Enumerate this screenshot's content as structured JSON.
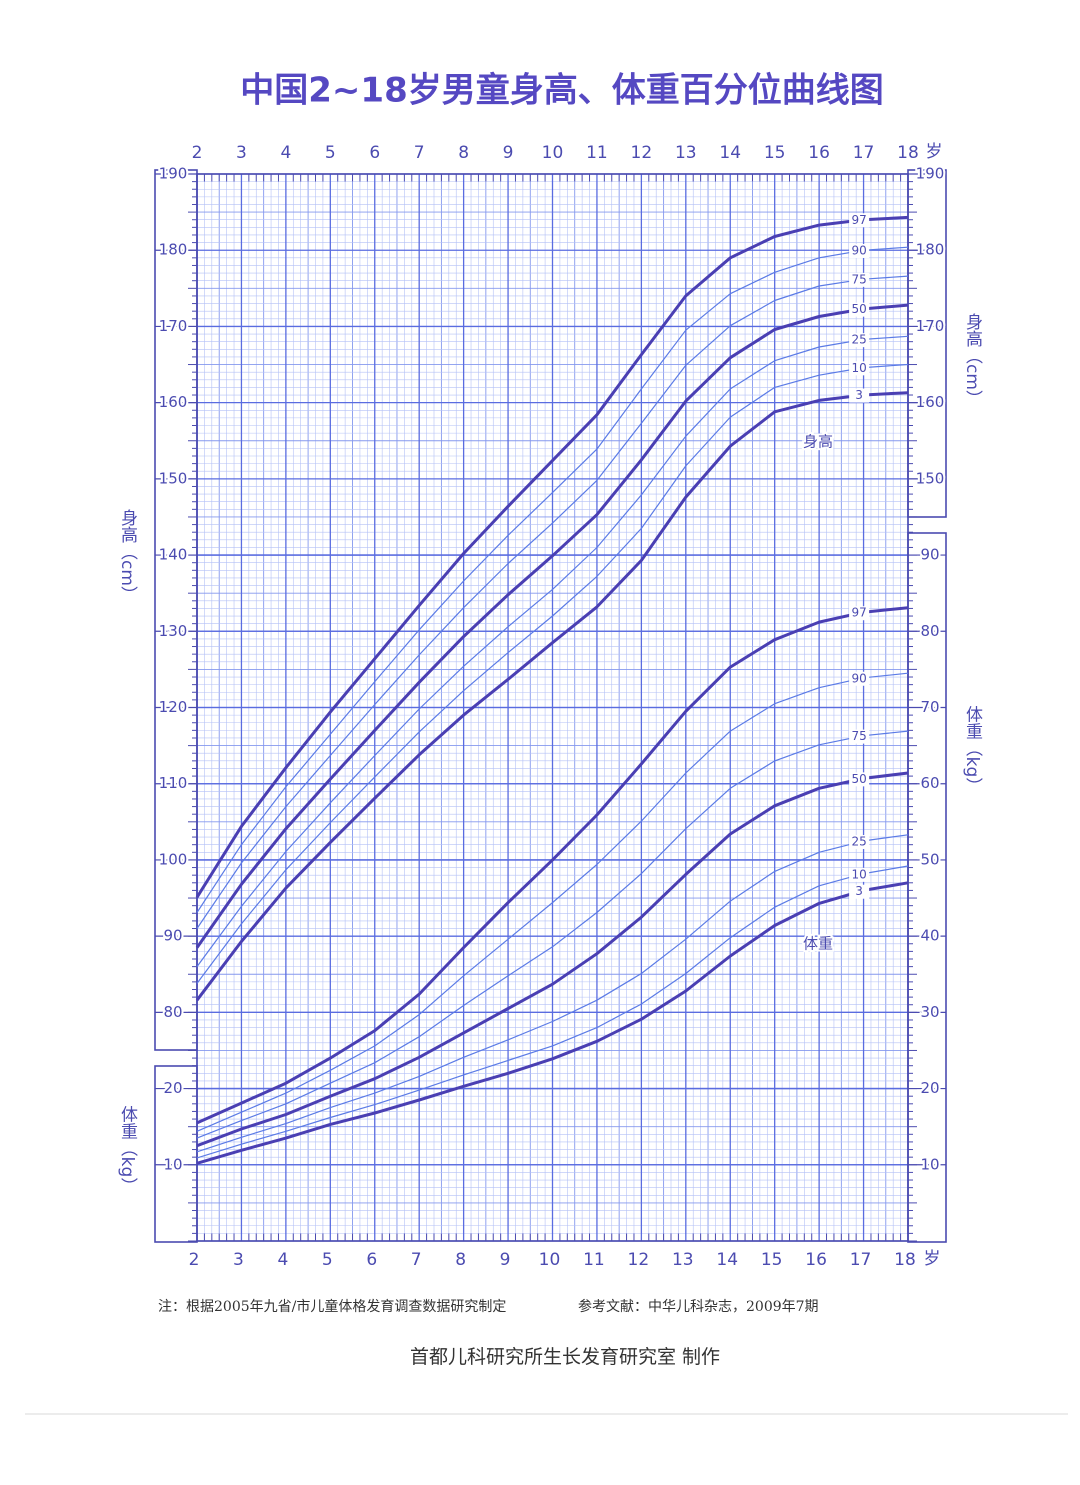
{
  "chart_data": {
    "type": "line",
    "title": "中国2~18岁男童身高、体重百分位曲线图",
    "x": [
      2,
      3,
      4,
      5,
      6,
      7,
      8,
      9,
      10,
      11,
      12,
      13,
      14,
      15,
      16,
      17,
      18
    ],
    "xlim": [
      2,
      18
    ],
    "xticks": [
      2,
      3,
      4,
      5,
      6,
      7,
      8,
      9,
      10,
      11,
      12,
      13,
      14,
      15,
      16,
      17,
      18
    ],
    "xunit": "岁",
    "ylabel": "身高（cm）",
    "y2label": "体重（kg）",
    "ylim": [
      50,
      190
    ],
    "yticks": [
      80,
      90,
      100,
      110,
      120,
      130,
      140,
      150,
      160,
      170,
      180,
      190
    ],
    "yticks_right": [
      150,
      160,
      170,
      180,
      190
    ],
    "y2lim": [
      0,
      140
    ],
    "y2ticks": [
      10,
      20,
      30,
      40,
      50,
      60,
      70,
      80,
      90
    ],
    "y2ticks_left": [
      10,
      20
    ],
    "grid": true,
    "annotations": [
      "身高",
      "体重"
    ],
    "series": [
      {
        "name": "97",
        "axis": "y",
        "color": "#4a3fb3",
        "linewidth": 3,
        "values": [
          95.1,
          104.4,
          112.1,
          119.4,
          126.4,
          133.4,
          140.2,
          146.4,
          152.4,
          158.4,
          166.3,
          174.0,
          179.0,
          181.8,
          183.3,
          184.0,
          184.3
        ]
      },
      {
        "name": "90",
        "axis": "y",
        "color": "#5b7be6",
        "linewidth": 1.2,
        "values": [
          93.1,
          102.0,
          109.6,
          116.5,
          123.4,
          130.2,
          136.6,
          142.6,
          148.2,
          153.9,
          161.8,
          169.5,
          174.3,
          177.1,
          179.0,
          180.0,
          180.4
        ]
      },
      {
        "name": "75",
        "axis": "y",
        "color": "#5b7be6",
        "linewidth": 1.2,
        "values": [
          91.0,
          99.6,
          107.0,
          113.7,
          120.4,
          126.9,
          133.1,
          138.9,
          144.2,
          149.8,
          157.3,
          164.9,
          170.1,
          173.4,
          175.3,
          176.2,
          176.6
        ]
      },
      {
        "name": "50",
        "axis": "y",
        "color": "#4a3fb3",
        "linewidth": 3,
        "values": [
          88.5,
          96.8,
          104.1,
          110.6,
          117.0,
          123.3,
          129.3,
          134.8,
          139.9,
          145.3,
          152.5,
          160.2,
          165.9,
          169.6,
          171.3,
          172.3,
          172.8
        ]
      },
      {
        "name": "25",
        "axis": "y",
        "color": "#5b7be6",
        "linewidth": 1.2,
        "values": [
          86.0,
          93.9,
          101.1,
          107.5,
          113.7,
          119.8,
          125.4,
          130.6,
          135.5,
          141.0,
          147.9,
          155.6,
          161.8,
          165.5,
          167.3,
          168.3,
          168.7
        ]
      },
      {
        "name": "10",
        "axis": "y",
        "color": "#5b7be6",
        "linewidth": 1.2,
        "values": [
          83.8,
          91.6,
          98.7,
          104.9,
          110.9,
          116.8,
          122.2,
          127.2,
          132.0,
          137.2,
          143.5,
          151.7,
          158.1,
          162.0,
          163.6,
          164.6,
          165.0
        ]
      },
      {
        "name": "3",
        "axis": "y",
        "color": "#4a3fb3",
        "linewidth": 3,
        "values": [
          81.6,
          89.3,
          96.3,
          102.3,
          108.1,
          113.8,
          119.0,
          123.7,
          128.5,
          133.2,
          139.3,
          147.6,
          154.3,
          158.8,
          160.3,
          161.0,
          161.3
        ]
      },
      {
        "name": "97",
        "axis": "y2",
        "color": "#4a3fb3",
        "linewidth": 3,
        "values": [
          15.5,
          18.1,
          20.7,
          24.0,
          27.6,
          32.4,
          38.5,
          44.4,
          50.0,
          55.9,
          62.6,
          69.5,
          75.3,
          78.9,
          81.2,
          82.5,
          83.1
        ]
      },
      {
        "name": "90",
        "axis": "y2",
        "color": "#5b7be6",
        "linewidth": 1.2,
        "values": [
          14.4,
          16.9,
          19.4,
          22.4,
          25.6,
          29.7,
          34.8,
          39.6,
          44.4,
          49.4,
          55.1,
          61.4,
          66.9,
          70.5,
          72.6,
          73.9,
          74.5
        ]
      },
      {
        "name": "75",
        "axis": "y2",
        "color": "#5b7be6",
        "linewidth": 1.2,
        "values": [
          13.5,
          15.8,
          18.0,
          20.7,
          23.4,
          26.8,
          30.9,
          34.8,
          38.6,
          43.1,
          48.2,
          54.1,
          59.4,
          63.0,
          65.1,
          66.3,
          66.9
        ]
      },
      {
        "name": "50",
        "axis": "y2",
        "color": "#4a3fb3",
        "linewidth": 3,
        "values": [
          12.5,
          14.7,
          16.6,
          19.0,
          21.3,
          24.1,
          27.3,
          30.5,
          33.7,
          37.7,
          42.5,
          48.1,
          53.4,
          57.1,
          59.4,
          60.7,
          61.4
        ]
      },
      {
        "name": "25",
        "axis": "y2",
        "color": "#5b7be6",
        "linewidth": 1.2,
        "values": [
          11.7,
          13.6,
          15.4,
          17.5,
          19.4,
          21.6,
          24.1,
          26.4,
          28.8,
          31.6,
          35.1,
          39.6,
          44.6,
          48.5,
          51.0,
          52.5,
          53.3
        ]
      },
      {
        "name": "10",
        "axis": "y2",
        "color": "#5b7be6",
        "linewidth": 1.2,
        "values": [
          10.9,
          12.7,
          14.4,
          16.2,
          17.9,
          19.8,
          21.8,
          23.7,
          25.6,
          28.0,
          31.1,
          35.1,
          39.8,
          43.8,
          46.6,
          48.2,
          49.2
        ]
      },
      {
        "name": "3",
        "axis": "y2",
        "color": "#4a3fb3",
        "linewidth": 3,
        "values": [
          10.2,
          11.9,
          13.5,
          15.3,
          16.8,
          18.5,
          20.3,
          22.0,
          23.9,
          26.2,
          29.1,
          32.8,
          37.4,
          41.4,
          44.3,
          46.0,
          47.0
        ]
      }
    ]
  },
  "notes": {
    "source": "注：根据2005年九省/市儿童体格发育调查数据研究制定",
    "reference": "参考文献：中华儿科杂志，2009年7期",
    "credit": "首都儿科研究所生长发育研究室  制作"
  }
}
